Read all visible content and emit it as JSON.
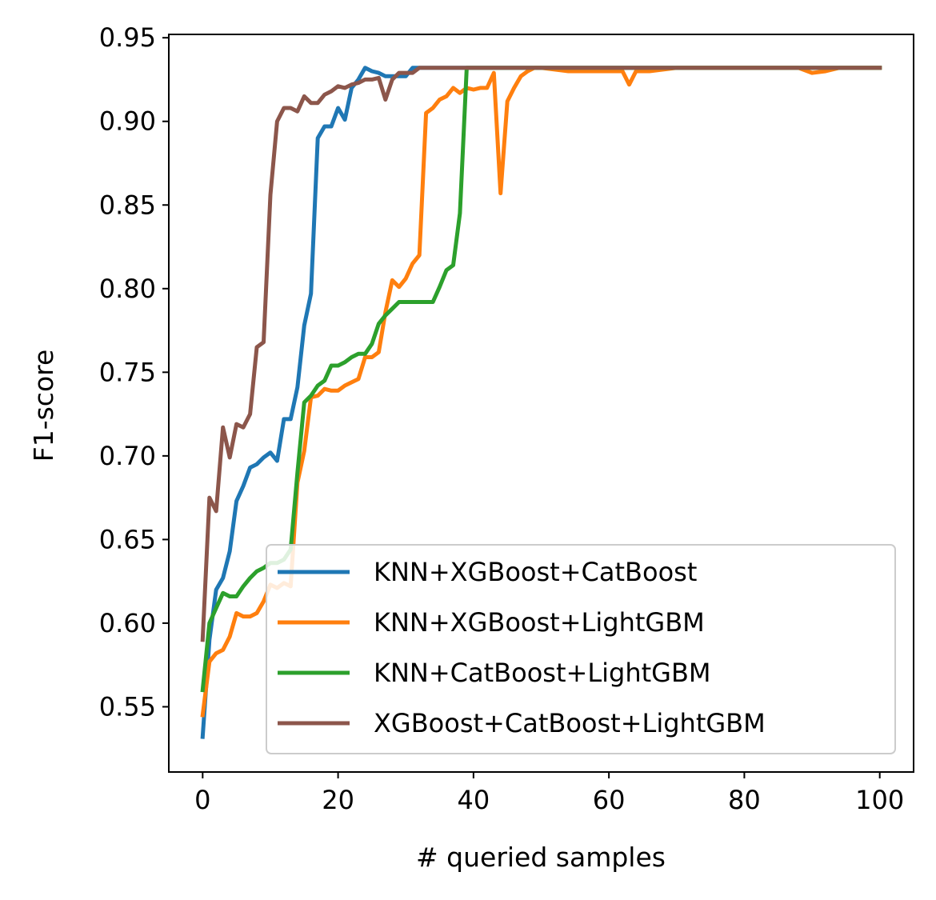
{
  "chart_data": {
    "type": "line",
    "title": "",
    "xlabel": "# queried samples",
    "ylabel": "F1-score",
    "xlim": [
      -5,
      105
    ],
    "ylim": [
      0.511,
      0.952
    ],
    "xticks": [
      0,
      20,
      40,
      60,
      80,
      100
    ],
    "yticks": [
      0.55,
      0.6,
      0.65,
      0.7,
      0.75,
      0.8,
      0.85,
      0.9,
      0.95
    ],
    "grid": false,
    "legend_position": "lower-right",
    "series": [
      {
        "name": "KNN+XGBoost+CatBoost",
        "color": "#1f77b4",
        "x": [
          0,
          1,
          2,
          3,
          4,
          5,
          6,
          7,
          8,
          9,
          10,
          11,
          12,
          13,
          14,
          15,
          16,
          17,
          18,
          19,
          20,
          21,
          22,
          23,
          24,
          25,
          26,
          27,
          28,
          29,
          30,
          31,
          32,
          40,
          50,
          60,
          70,
          80,
          90,
          100
        ],
        "y": [
          0.532,
          0.59,
          0.62,
          0.627,
          0.643,
          0.673,
          0.682,
          0.693,
          0.695,
          0.699,
          0.702,
          0.697,
          0.722,
          0.722,
          0.741,
          0.778,
          0.797,
          0.89,
          0.897,
          0.897,
          0.908,
          0.901,
          0.92,
          0.925,
          0.932,
          0.93,
          0.929,
          0.927,
          0.927,
          0.927,
          0.927,
          0.932,
          0.932,
          0.932,
          0.932,
          0.932,
          0.932,
          0.932,
          0.932,
          0.932
        ]
      },
      {
        "name": "KNN+XGBoost+LightGBM",
        "color": "#ff7f0e",
        "x": [
          0,
          1,
          2,
          3,
          4,
          5,
          6,
          7,
          8,
          9,
          10,
          11,
          12,
          13,
          14,
          15,
          16,
          17,
          18,
          19,
          20,
          21,
          22,
          23,
          24,
          25,
          26,
          27,
          28,
          29,
          30,
          31,
          32,
          33,
          34,
          35,
          36,
          37,
          38,
          39,
          40,
          41,
          42,
          43,
          44,
          45,
          46,
          47,
          48,
          49,
          50,
          54,
          60,
          62,
          63,
          64,
          66,
          70,
          80,
          88,
          90,
          92,
          94,
          100
        ],
        "y": [
          0.545,
          0.577,
          0.582,
          0.584,
          0.592,
          0.606,
          0.604,
          0.604,
          0.606,
          0.613,
          0.623,
          0.621,
          0.624,
          0.622,
          0.684,
          0.703,
          0.735,
          0.736,
          0.74,
          0.739,
          0.739,
          0.742,
          0.744,
          0.746,
          0.759,
          0.759,
          0.762,
          0.786,
          0.805,
          0.801,
          0.806,
          0.815,
          0.82,
          0.905,
          0.908,
          0.913,
          0.915,
          0.92,
          0.917,
          0.92,
          0.919,
          0.92,
          0.92,
          0.929,
          0.857,
          0.912,
          0.92,
          0.927,
          0.93,
          0.932,
          0.932,
          0.93,
          0.93,
          0.93,
          0.922,
          0.93,
          0.93,
          0.932,
          0.932,
          0.932,
          0.929,
          0.93,
          0.932,
          0.932
        ]
      },
      {
        "name": "KNN+CatBoost+LightGBM",
        "color": "#2ca02c",
        "x": [
          0,
          1,
          2,
          3,
          4,
          5,
          6,
          7,
          8,
          9,
          10,
          11,
          12,
          13,
          14,
          15,
          16,
          17,
          18,
          19,
          20,
          21,
          22,
          23,
          24,
          25,
          26,
          27,
          28,
          29,
          30,
          31,
          32,
          33,
          34,
          35,
          36,
          37,
          38,
          39,
          40,
          50,
          60,
          70,
          80,
          90,
          100
        ],
        "y": [
          0.56,
          0.6,
          0.609,
          0.618,
          0.616,
          0.616,
          0.622,
          0.627,
          0.631,
          0.633,
          0.636,
          0.636,
          0.638,
          0.644,
          0.69,
          0.732,
          0.736,
          0.742,
          0.745,
          0.754,
          0.754,
          0.756,
          0.759,
          0.761,
          0.761,
          0.767,
          0.779,
          0.784,
          0.788,
          0.792,
          0.792,
          0.792,
          0.792,
          0.792,
          0.792,
          0.801,
          0.811,
          0.814,
          0.845,
          0.932,
          0.932,
          0.932,
          0.932,
          0.932,
          0.932,
          0.932,
          0.932
        ]
      },
      {
        "name": "XGBoost+CatBoost+LightGBM",
        "color": "#8c564b",
        "x": [
          0,
          1,
          2,
          3,
          4,
          5,
          6,
          7,
          8,
          9,
          10,
          11,
          12,
          13,
          14,
          15,
          16,
          17,
          18,
          19,
          20,
          21,
          22,
          23,
          24,
          25,
          26,
          27,
          28,
          29,
          30,
          31,
          32,
          40,
          50,
          60,
          70,
          80,
          90,
          100
        ],
        "y": [
          0.59,
          0.675,
          0.667,
          0.717,
          0.699,
          0.719,
          0.717,
          0.725,
          0.765,
          0.768,
          0.856,
          0.9,
          0.908,
          0.908,
          0.906,
          0.915,
          0.911,
          0.911,
          0.916,
          0.918,
          0.921,
          0.92,
          0.922,
          0.923,
          0.925,
          0.925,
          0.926,
          0.913,
          0.925,
          0.929,
          0.929,
          0.929,
          0.932,
          0.932,
          0.932,
          0.932,
          0.932,
          0.932,
          0.932,
          0.932
        ]
      }
    ]
  }
}
